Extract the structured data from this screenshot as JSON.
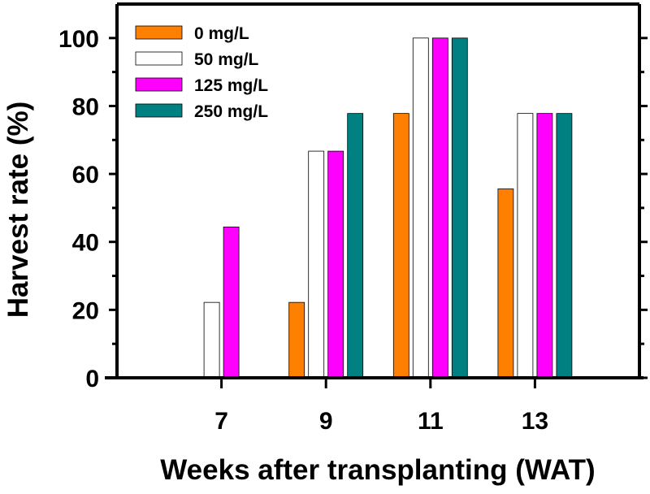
{
  "chart_data": {
    "type": "bar",
    "title": "",
    "xlabel": "Weeks after transplanting (WAT)",
    "ylabel": "Harvest rate (%)",
    "categories": [
      "7",
      "9",
      "11",
      "13"
    ],
    "x": [
      7,
      9,
      11,
      13
    ],
    "xlim": [
      5,
      15
    ],
    "ylim": [
      0,
      110
    ],
    "yticks": [
      0,
      20,
      40,
      60,
      80,
      100
    ],
    "grid": false,
    "legend": "top-left",
    "series": [
      {
        "name": "0 mg/L",
        "color": "#ff7f00",
        "values": [
          0,
          22.2,
          77.8,
          55.6
        ]
      },
      {
        "name": "50 mg/L",
        "color": "#ffffff",
        "values": [
          22.2,
          66.7,
          100,
          77.8
        ]
      },
      {
        "name": "125 mg/L",
        "color": "#ff00ff",
        "values": [
          44.4,
          66.7,
          100,
          77.8
        ]
      },
      {
        "name": "250 mg/L",
        "color": "#008080",
        "values": [
          0,
          77.8,
          100,
          77.8
        ]
      }
    ]
  }
}
